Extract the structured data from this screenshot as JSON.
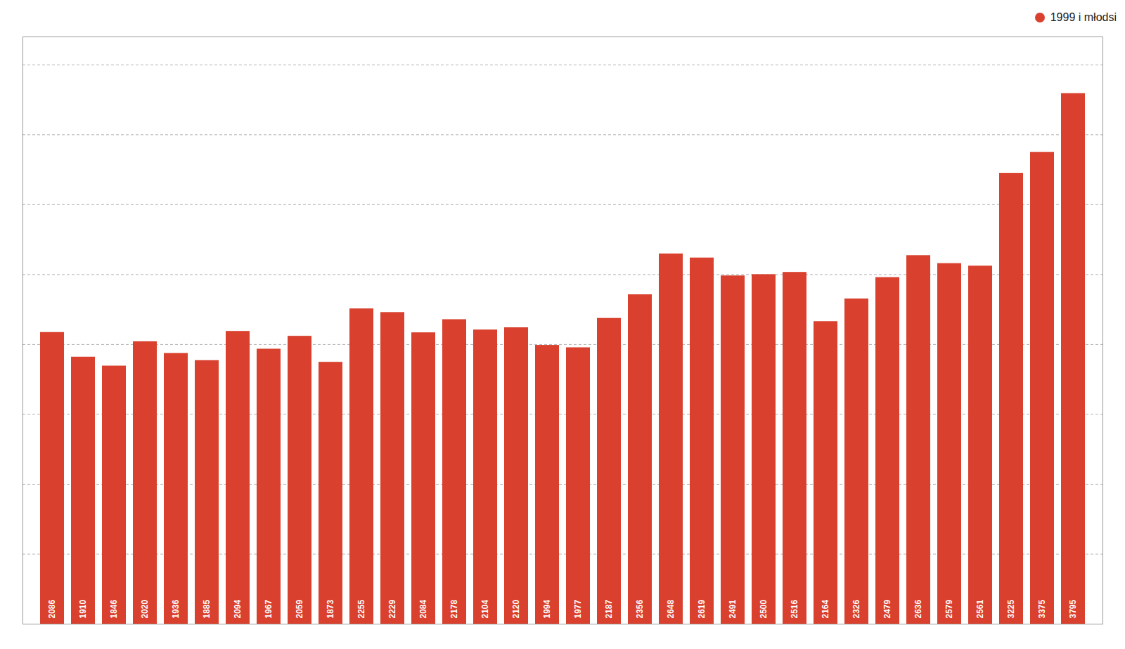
{
  "chart_data": {
    "type": "bar",
    "categories": [
      null,
      null,
      null,
      null,
      null,
      null,
      null,
      null,
      null,
      null,
      null,
      null,
      null,
      null,
      null,
      null,
      null,
      null,
      null,
      null,
      null,
      null,
      null,
      null,
      null,
      null,
      null,
      null,
      null,
      null,
      null,
      null,
      null,
      null
    ],
    "series": [
      {
        "name": "1999 i młodsi",
        "color": "#d9412e",
        "values": [
          2086,
          1910,
          1846,
          2020,
          1936,
          1885,
          2094,
          1967,
          2059,
          1873,
          2255,
          2229,
          2084,
          2178,
          2104,
          2120,
          1994,
          1977,
          2187,
          2356,
          2648,
          2619,
          2491,
          2500,
          2516,
          2164,
          2326,
          2479,
          2636,
          2579,
          2561,
          3225,
          3375,
          3795
        ]
      }
    ],
    "ylim": [
      0,
      4200
    ],
    "yticks": [
      500,
      1000,
      1500,
      2000,
      2500,
      3000,
      3500,
      4000
    ],
    "grid": true,
    "legend": "upper right",
    "data_labels": true,
    "tick_labels": false
  }
}
